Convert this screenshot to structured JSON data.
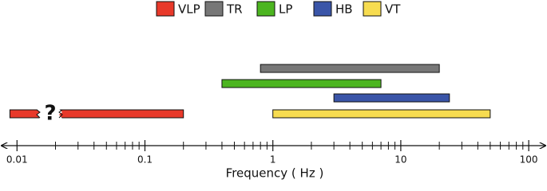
{
  "chart_data": {
    "type": "range",
    "xlabel": "Frequency ( Hz )",
    "annotation": "?",
    "xscale": "log",
    "legend": "top-center",
    "xlim": [
      0.0078,
      135
    ],
    "xticks": [
      0.01,
      0.1,
      1,
      10,
      100
    ],
    "minor_xticks": [
      0.02,
      0.03,
      0.04,
      0.05,
      0.06,
      0.07,
      0.08,
      0.09,
      0.2,
      0.3,
      0.4,
      0.5,
      0.6,
      0.7,
      0.8,
      0.9,
      2,
      3,
      4,
      5,
      6,
      7,
      8,
      9,
      20,
      30,
      40,
      50,
      60,
      70,
      80,
      90
    ],
    "series": [
      {
        "name": "VLP",
        "color": "#e8392a",
        "values": [
          0.0088,
          0.2
        ]
      },
      {
        "name": "TR",
        "color": "#777777",
        "values": [
          0.8,
          20
        ]
      },
      {
        "name": "LP",
        "color": "#4cb520",
        "values": [
          0.4,
          7
        ]
      },
      {
        "name": "HB",
        "color": "#3a55a8",
        "values": [
          3,
          24
        ]
      },
      {
        "name": "VT",
        "color": "#f7dc50",
        "values": [
          1,
          50
        ]
      }
    ]
  }
}
